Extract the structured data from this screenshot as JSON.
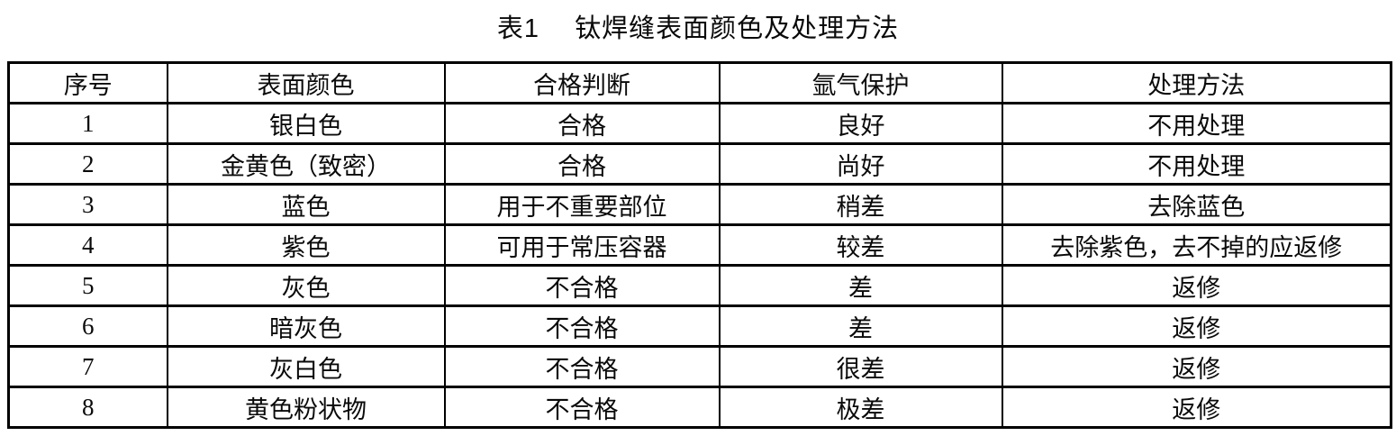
{
  "title": "表1　 钛焊缝表面颜色及处理方法",
  "colors": {
    "border": "#000000",
    "text": "#0a0a0a",
    "background": "#ffffff"
  },
  "table": {
    "headers": [
      "序号",
      "表面颜色",
      "合格判断",
      "氩气保护",
      "处理方法"
    ],
    "rows": [
      [
        "1",
        "银白色",
        "合格",
        "良好",
        "不用处理"
      ],
      [
        "2",
        "金黄色（致密）",
        "合格",
        "尚好",
        "不用处理"
      ],
      [
        "3",
        "蓝色",
        "用于不重要部位",
        "稍差",
        "去除蓝色"
      ],
      [
        "4",
        "紫色",
        "可用于常压容器",
        "较差",
        "去除紫色，去不掉的应返修"
      ],
      [
        "5",
        "灰色",
        "不合格",
        "差",
        "返修"
      ],
      [
        "6",
        "暗灰色",
        "不合格",
        "差",
        "返修"
      ],
      [
        "7",
        "灰白色",
        "不合格",
        "很差",
        "返修"
      ],
      [
        "8",
        "黄色粉状物",
        "不合格",
        "极差",
        "返修"
      ]
    ]
  }
}
